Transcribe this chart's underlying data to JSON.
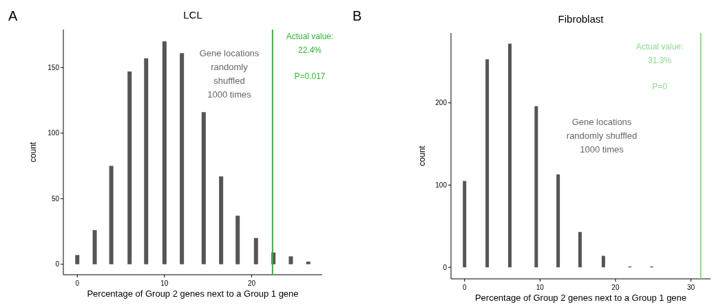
{
  "chart_data": [
    {
      "type": "bar",
      "title": "LCL",
      "xlabel": "Percentage of Group 2 genes next to a Group 1 gene",
      "ylabel": "count",
      "annotations": [
        "A",
        "Gene locations randomly shuffled 1000 times",
        "P=0.017"
      ],
      "x": [
        0,
        2,
        3.9,
        6,
        7.9,
        10,
        12,
        14.5,
        16.5,
        18.4,
        20.5,
        22.5,
        24.5,
        26.5
      ],
      "values": [
        7,
        26,
        75,
        147,
        157,
        170,
        161,
        116,
        67,
        37,
        20,
        9,
        6,
        2
      ],
      "color": "#555555",
      "xlim": [
        -1.6,
        28.1
      ],
      "xticks": [
        0,
        10,
        20
      ],
      "ylim": [
        -8,
        179
      ],
      "yticks": [
        0,
        50,
        100,
        150
      ],
      "ref_lines": [
        {
          "axis": "x",
          "value": 22.4,
          "label": "Actual value: 22.4%",
          "color": "#2db82d"
        }
      ]
    },
    {
      "type": "bar",
      "title": "Fibroblast",
      "xlabel": "Percentage of Group 2 genes next to a Group 1 gene",
      "ylabel": "count",
      "annotations": [
        "B",
        "Gene locations randomly shuffled 1000 times",
        "P=0"
      ],
      "x": [
        0,
        3,
        6,
        9.5,
        12.4,
        15.3,
        18.4,
        21.9,
        24.8
      ],
      "values": [
        105,
        253,
        272,
        196,
        113,
        43,
        14,
        1,
        1
      ],
      "color": "#555555",
      "xlim": [
        -1.8,
        32.6
      ],
      "xticks": [
        0,
        10,
        20,
        30
      ],
      "ylim": [
        -14,
        285
      ],
      "yticks": [
        0,
        100,
        200
      ],
      "ref_lines": [
        {
          "axis": "x",
          "value": 31.3,
          "label": "Actual value: 31.3%",
          "color": "#8fd88f"
        }
      ]
    }
  ]
}
